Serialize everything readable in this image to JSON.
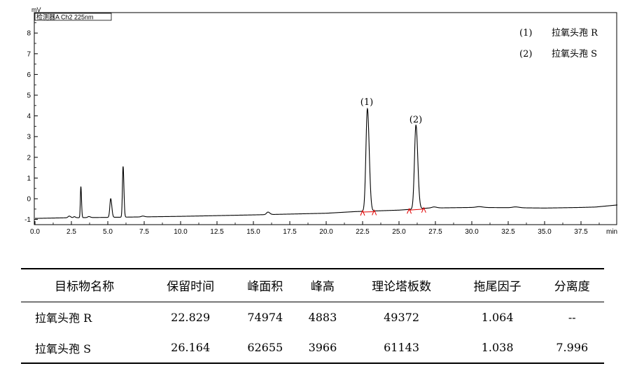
{
  "chart_data": {
    "type": "line",
    "title": "",
    "detector_label": "检测器A Ch2 225nm",
    "ylabel": "mV",
    "xlabel": "min",
    "xlim": [
      0.0,
      40.0
    ],
    "ylim": [
      -1.0,
      9.0
    ],
    "x_ticks": [
      "0.0",
      "2.5",
      "5.0",
      "7.5",
      "10.0",
      "12.5",
      "15.0",
      "17.5",
      "20.0",
      "22.5",
      "25.0",
      "27.5",
      "30.0",
      "32.5",
      "35.0",
      "37.5"
    ],
    "y_ticks": [
      "-1",
      "0",
      "1",
      "2",
      "3",
      "4",
      "5",
      "6",
      "7",
      "8"
    ],
    "grid": false,
    "legend_position": "top-right",
    "legend": [
      {
        "num": "(1)",
        "name": "拉氧头孢 R"
      },
      {
        "num": "(2)",
        "name": "拉氧头孢 S"
      }
    ],
    "peak_labels": [
      {
        "label": "(1)",
        "x": 22.829,
        "y": 4.3
      },
      {
        "label": "(2)",
        "x": 26.164,
        "y": 3.5
      }
    ],
    "integration_marks": [
      22.5,
      23.3,
      25.7,
      26.7
    ],
    "baseline": [
      [
        0.0,
        -0.95
      ],
      [
        2.0,
        -0.92
      ],
      [
        5.0,
        -0.9
      ],
      [
        10.0,
        -0.85
      ],
      [
        15.0,
        -0.78
      ],
      [
        20.0,
        -0.7
      ],
      [
        22.0,
        -0.62
      ],
      [
        25.0,
        -0.55
      ],
      [
        27.0,
        -0.45
      ],
      [
        30.0,
        -0.42
      ],
      [
        32.5,
        -0.43
      ],
      [
        35.0,
        -0.45
      ],
      [
        37.5,
        -0.42
      ],
      [
        38.5,
        -0.4
      ],
      [
        40.0,
        -0.3
      ]
    ],
    "peaks": [
      {
        "x": 2.35,
        "height": 0.08,
        "width": 0.08
      },
      {
        "x": 2.7,
        "height": 0.05,
        "width": 0.06
      },
      {
        "x": 3.15,
        "height": 1.5,
        "width": 0.035
      },
      {
        "x": 3.7,
        "height": 0.05,
        "width": 0.08
      },
      {
        "x": 5.2,
        "height": 0.9,
        "width": 0.06
      },
      {
        "x": 6.05,
        "height": 2.45,
        "width": 0.045
      },
      {
        "x": 7.4,
        "height": 0.04,
        "width": 0.1
      },
      {
        "x": 16.0,
        "height": 0.12,
        "width": 0.1
      },
      {
        "x": 22.829,
        "height": 4.95,
        "width": 0.1
      },
      {
        "x": 26.164,
        "height": 4.05,
        "width": 0.1
      },
      {
        "x": 27.4,
        "height": 0.05,
        "width": 0.15
      },
      {
        "x": 30.5,
        "height": 0.04,
        "width": 0.2
      },
      {
        "x": 33.0,
        "height": 0.04,
        "width": 0.2
      }
    ]
  },
  "table": {
    "headers": [
      "目标物名称",
      "保留时间",
      "峰面积",
      "峰高",
      "理论塔板数",
      "拖尾因子",
      "分离度"
    ],
    "rows": [
      [
        "拉氧头孢 R",
        "22.829",
        "74974",
        "4883",
        "49372",
        "1.064",
        "--"
      ],
      [
        "拉氧头孢 S",
        "26.164",
        "62655",
        "3966",
        "61143",
        "1.038",
        "7.996"
      ]
    ]
  }
}
